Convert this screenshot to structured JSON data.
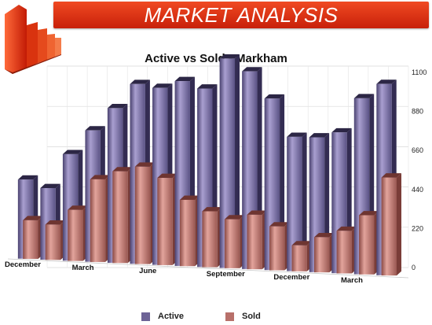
{
  "banner": {
    "title": "MARKET ANALYSIS"
  },
  "logo": {
    "icon": "bar-chart-logo-icon"
  },
  "chart_data": {
    "type": "bar",
    "title": "Active vs Sold - Markham",
    "ylim": [
      0,
      1100
    ],
    "yticks": [
      "0",
      "220",
      "440",
      "660",
      "880",
      "1100"
    ],
    "x_tick_labels": [
      {
        "label": "December",
        "index": 0
      },
      {
        "label": "March",
        "index": 3
      },
      {
        "label": "June",
        "index": 6
      },
      {
        "label": "September",
        "index": 9
      },
      {
        "label": "December",
        "index": 12
      },
      {
        "label": "March",
        "index": 15
      }
    ],
    "series": [
      {
        "name": "Active",
        "color": "#6d6396",
        "values": [
          455,
          410,
          610,
          750,
          880,
          1020,
          1000,
          1040,
          1000,
          1170,
          1100,
          950,
          740,
          740,
          770,
          960,
          1040
        ]
      },
      {
        "name": "Sold",
        "color": "#b8706a",
        "values": [
          220,
          200,
          290,
          470,
          520,
          550,
          490,
          370,
          310,
          270,
          300,
          240,
          140,
          190,
          230,
          320,
          530
        ]
      }
    ],
    "legend_position": "bottom",
    "grid": true,
    "style": "3d"
  }
}
